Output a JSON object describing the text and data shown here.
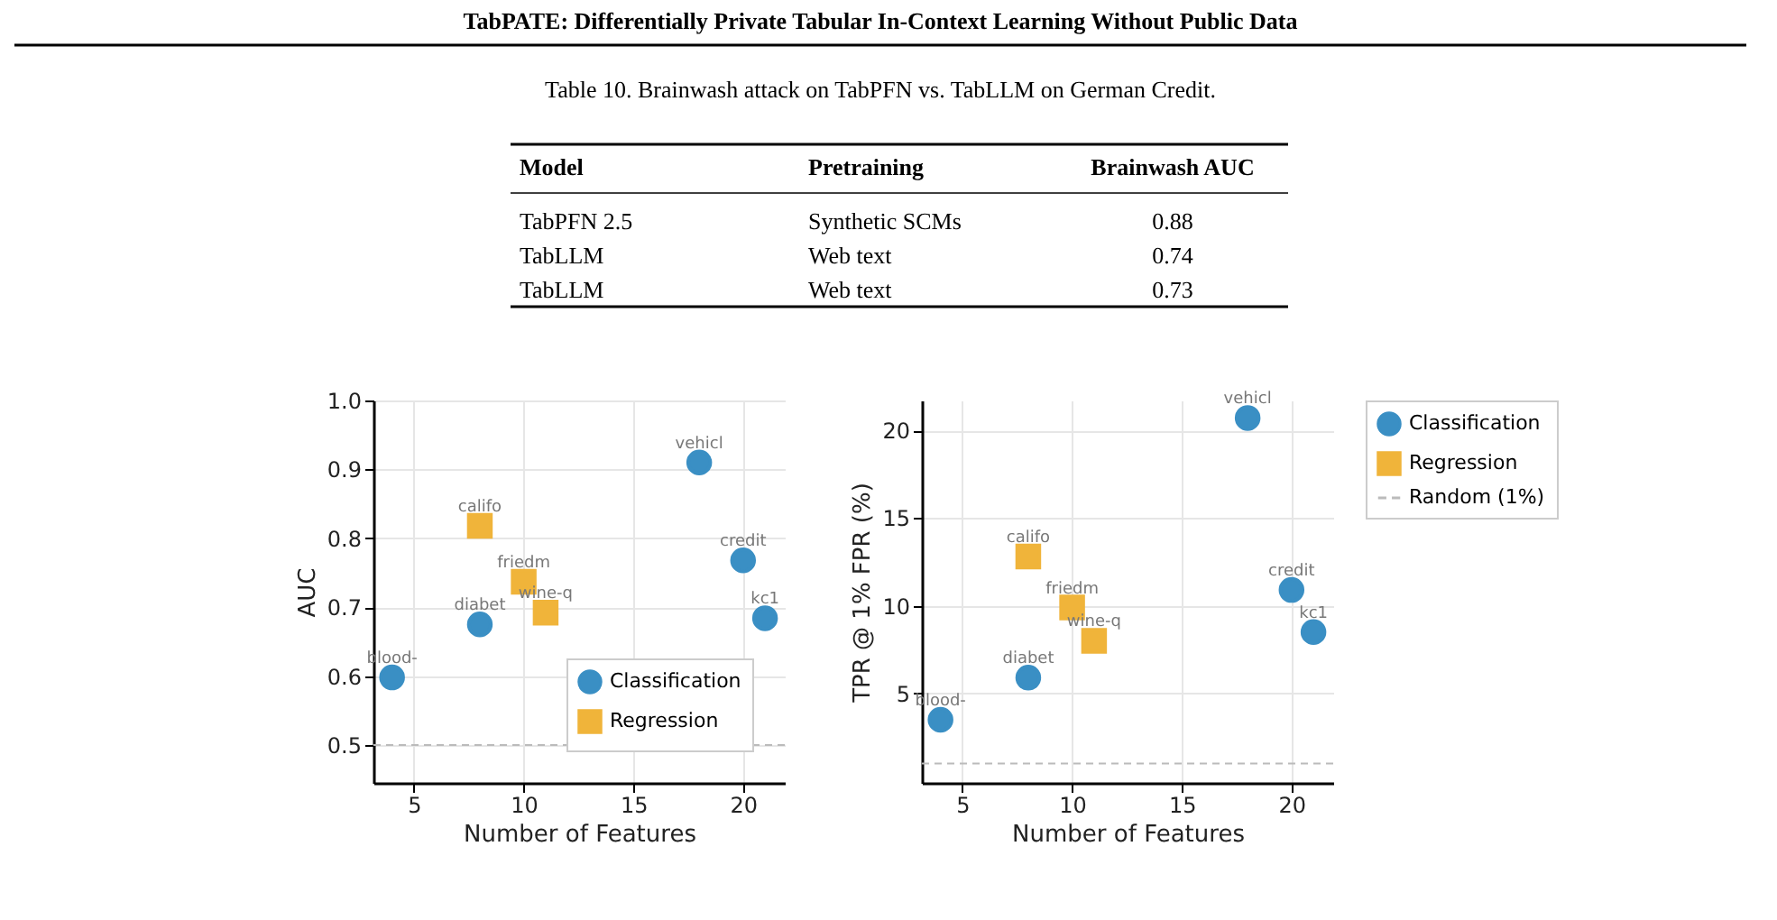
{
  "chart_data": [
    {
      "type": "other",
      "title": "TabPATE: Differentially Private Tabular In-Context Learning Without Public Data",
      "subtitle": "Table 10. Brainwash attack on TabPFN vs. TabLLM on German Credit.",
      "categories": [
        "Model",
        "Pretraining",
        "Brainwash AUC"
      ],
      "y_categories": [
        "TabPFN 2.5",
        "TabLLM",
        "TabLLM"
      ],
      "cell_labels": [
        [
          "Synthetic SCMs",
          "0.88"
        ],
        [
          "Web text",
          "0.74"
        ],
        [
          "Web text",
          "0.73"
        ]
      ]
    },
    {
      "type": "scatter",
      "xlabel": "Number of Features",
      "ylabel": "AUC",
      "xlim": [
        3.15,
        21.9
      ],
      "ylim": [
        0.445,
        1.0
      ],
      "xticks": [
        5,
        10,
        15,
        20
      ],
      "yticks": [
        0.5,
        0.6,
        0.7,
        0.8,
        0.9,
        {
          "value": 1.0,
          "label": "1.0"
        }
      ],
      "grid": true,
      "legend": "bottom right",
      "series": [
        {
          "name": "Classification",
          "color": "#3a8fc4",
          "marker": "circle",
          "x": [
            4,
            8,
            18,
            20,
            21
          ],
          "values": [
            0.598,
            0.675,
            0.91,
            0.768,
            0.684
          ]
        },
        {
          "name": "Regression",
          "color": "#f0b43a",
          "marker": "square",
          "x": [
            8,
            10,
            11
          ],
          "values": [
            0.818,
            0.737,
            0.692
          ]
        }
      ],
      "ref_lines": [
        {
          "axis": "y",
          "value": 0.5,
          "color": "#bbbbbb",
          "line_style": "dashed"
        }
      ],
      "annotations": [
        {
          "text": "blood-",
          "x": 4,
          "y": 0.598
        },
        {
          "text": "diabet",
          "x": 8,
          "y": 0.675
        },
        {
          "text": "vehicl",
          "x": 18,
          "y": 0.91
        },
        {
          "text": "credit",
          "x": 20,
          "y": 0.768
        },
        {
          "text": "kc1",
          "x": 21,
          "y": 0.684
        },
        {
          "text": "califo",
          "x": 8,
          "y": 0.818
        },
        {
          "text": "friedm",
          "x": 10,
          "y": 0.737
        },
        {
          "text": "wine-q",
          "x": 11,
          "y": 0.692
        }
      ]
    },
    {
      "type": "scatter",
      "xlabel": "Number of Features",
      "ylabel": "TPR @ 1% FPR (%)",
      "xlim": [
        3.15,
        21.9
      ],
      "ylim": [
        -0.1,
        21.7
      ],
      "xticks": [
        5,
        10,
        15,
        20
      ],
      "yticks": [
        5,
        10,
        15,
        20
      ],
      "grid": true,
      "legend": "right",
      "series": [
        {
          "name": "Classification",
          "color": "#3a8fc4",
          "marker": "circle",
          "x": [
            4,
            8,
            18,
            20,
            21
          ],
          "values": [
            3.5,
            5.9,
            20.7,
            10.9,
            8.5
          ]
        },
        {
          "name": "Regression",
          "color": "#f0b43a",
          "marker": "square",
          "x": [
            8,
            10,
            11
          ],
          "values": [
            12.8,
            9.9,
            8.0
          ]
        }
      ],
      "ref_lines": [
        {
          "axis": "y",
          "value": 1,
          "label": "Random (1%)",
          "color": "#bbbbbb",
          "line_style": "dashed"
        }
      ],
      "annotations": [
        {
          "text": "blood-",
          "x": 4,
          "y": 3.5
        },
        {
          "text": "diabet",
          "x": 8,
          "y": 5.9
        },
        {
          "text": "vehicl",
          "x": 18,
          "y": 20.7
        },
        {
          "text": "credit",
          "x": 20,
          "y": 10.9
        },
        {
          "text": "kc1",
          "x": 21,
          "y": 8.5
        },
        {
          "text": "califo",
          "x": 8,
          "y": 12.8
        },
        {
          "text": "friedm",
          "x": 10,
          "y": 9.9
        },
        {
          "text": "wine-q",
          "x": 11,
          "y": 8.0
        }
      ]
    }
  ]
}
